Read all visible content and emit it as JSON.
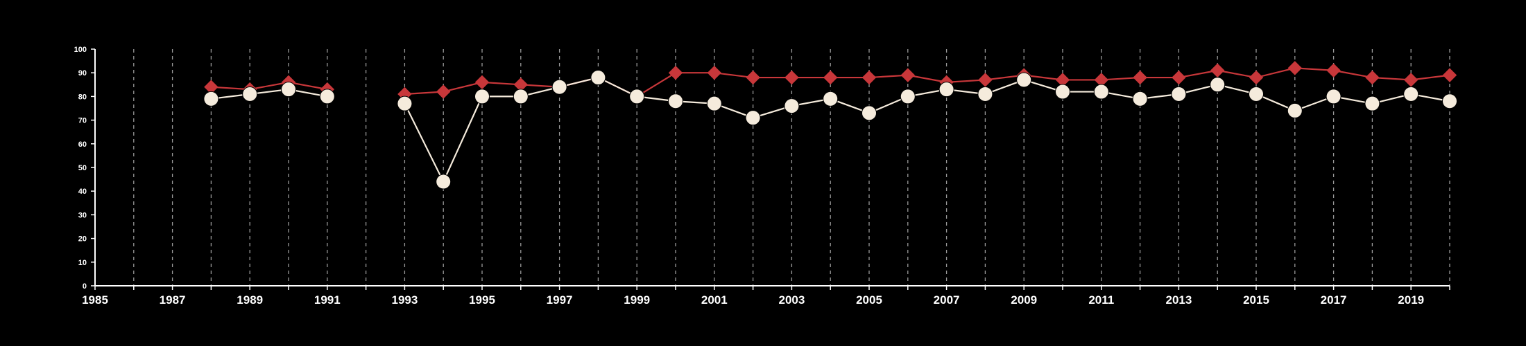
{
  "chart_data": {
    "type": "line",
    "title": "",
    "xlabel": "",
    "ylabel": "",
    "xlim": [
      1985,
      2020
    ],
    "ylim": [
      0,
      100
    ],
    "x_tick_labels": [
      "1985",
      "1987",
      "1989",
      "1991",
      "1993",
      "1995",
      "1997",
      "1999",
      "2001",
      "2003",
      "2005",
      "2007",
      "2009",
      "2011",
      "2013",
      "2015",
      "2017",
      "2019"
    ],
    "y_tick_labels": [
      "0",
      "10",
      "20",
      "30",
      "40",
      "50",
      "60",
      "70",
      "80",
      "90",
      "100"
    ],
    "grid": "vertical dashed lines at each year",
    "background_color": "#000000",
    "axis_color": "#ffffff",
    "series": [
      {
        "color": "#c8373a",
        "marker": "diamond",
        "x": [
          1988,
          1989,
          1990,
          1991,
          1993,
          1994,
          1995,
          1996,
          1997,
          1998,
          1999,
          2000,
          2001,
          2002,
          2003,
          2004,
          2005,
          2006,
          2007,
          2008,
          2009,
          2010,
          2011,
          2012,
          2013,
          2014,
          2015,
          2016,
          2017,
          2018,
          2019,
          2020
        ],
        "values": [
          84,
          83,
          86,
          83,
          81,
          82,
          86,
          85,
          84,
          88,
          80,
          90,
          90,
          88,
          88,
          88,
          88,
          89,
          86,
          87,
          89,
          87,
          87,
          88,
          88,
          91,
          88,
          92,
          91,
          88,
          87,
          89
        ]
      },
      {
        "color": "#f5ebdc",
        "marker": "circle",
        "x": [
          1988,
          1989,
          1990,
          1991,
          1993,
          1994,
          1995,
          1996,
          1997,
          1998,
          1999,
          2000,
          2001,
          2002,
          2003,
          2004,
          2005,
          2006,
          2007,
          2008,
          2009,
          2010,
          2011,
          2012,
          2013,
          2014,
          2015,
          2016,
          2017,
          2018,
          2019,
          2020
        ],
        "values": [
          79,
          81,
          83,
          80,
          77,
          44,
          80,
          80,
          84,
          88,
          80,
          78,
          77,
          71,
          76,
          79,
          73,
          80,
          83,
          81,
          87,
          82,
          82,
          79,
          81,
          85,
          81,
          74,
          80,
          77,
          81,
          78
        ]
      }
    ]
  }
}
